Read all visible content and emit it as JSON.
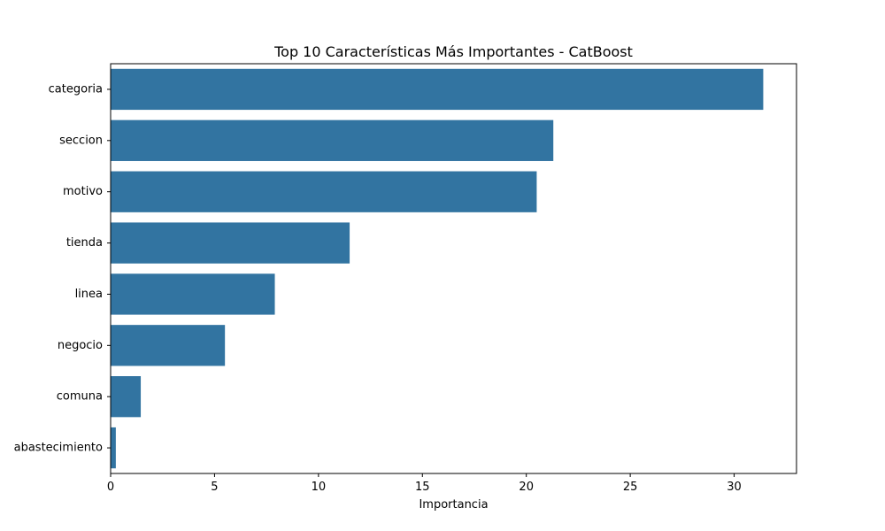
{
  "chart_data": {
    "type": "bar",
    "orientation": "horizontal",
    "title": "Top 10 Características Más Importantes - CatBoost",
    "xlabel": "Importancia",
    "ylabel": "",
    "categories": [
      "categoria",
      "seccion",
      "motivo",
      "tienda",
      "linea",
      "negocio",
      "comuna",
      "abastecimiento"
    ],
    "values": [
      31.4,
      21.3,
      20.5,
      11.5,
      7.9,
      5.5,
      1.45,
      0.25
    ],
    "xlim": [
      0,
      33
    ],
    "xticks": [
      0,
      5,
      10,
      15,
      20,
      25,
      30
    ],
    "bar_color": "#3274a1",
    "grid": false,
    "legend": "none"
  }
}
